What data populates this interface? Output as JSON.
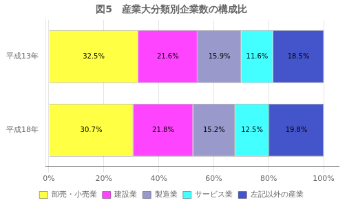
{
  "chart_data": {
    "type": "bar",
    "title": "図5　産業大分類別企業数の構成比",
    "orientation": "horizontal",
    "stacked": true,
    "data_labels": true,
    "grid": true,
    "legend": "bottom",
    "categories": [
      "平成18年",
      "平成13年"
    ],
    "series": [
      {
        "name": "卸売・小売業",
        "color": "#FFFF44",
        "values": [
          30.7,
          32.5
        ],
        "value_labels": [
          "30.7%",
          "32.5%"
        ]
      },
      {
        "name": "建設業",
        "color": "#FF44FF",
        "values": [
          21.8,
          21.6
        ],
        "value_labels": [
          "21.8%",
          "21.6%"
        ]
      },
      {
        "name": "製造業",
        "color": "#9999CC",
        "values": [
          15.2,
          15.9
        ],
        "value_labels": [
          "15.2%",
          "15.9%"
        ]
      },
      {
        "name": "サービス業",
        "color": "#44FFFF",
        "values": [
          12.5,
          11.6
        ],
        "value_labels": [
          "12.5%",
          "11.6%"
        ]
      },
      {
        "name": "左記以外の産業",
        "color": "#4455CC",
        "values": [
          19.8,
          18.5
        ],
        "value_labels": [
          "19.8%",
          "18.5%"
        ]
      }
    ],
    "xlim": [
      -1,
      105.5
    ],
    "xticks": [
      {
        "value": 0,
        "label": "0%"
      },
      {
        "value": 20,
        "label": "20%"
      },
      {
        "value": 40,
        "label": "40%"
      },
      {
        "value": 60,
        "label": "60%"
      },
      {
        "value": 80,
        "label": "80%"
      },
      {
        "value": 100,
        "label": "100%"
      }
    ]
  }
}
